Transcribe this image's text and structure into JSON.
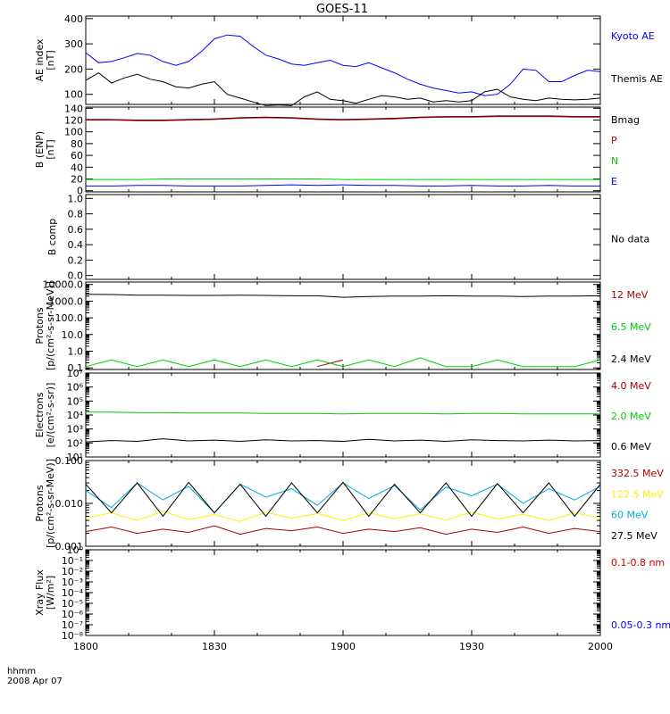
{
  "title": "GOES-11",
  "time_axis": {
    "label_line1": "hhmm",
    "label_line2": "2008 Apr 07",
    "ticks": [
      "1800",
      "1830",
      "1900",
      "1930",
      "2000"
    ]
  },
  "chart_data": [
    {
      "type": "line",
      "ylabel": "AE index\n[nT]",
      "ylim": [
        60,
        410
      ],
      "yscale": "linear",
      "yticks": [
        "100",
        "200",
        "300",
        "400"
      ],
      "x_hours": [
        18.0,
        18.05,
        18.1,
        18.15,
        18.2,
        18.25,
        18.3,
        18.35,
        18.4,
        18.45,
        18.5,
        18.55,
        18.6,
        18.65,
        18.7,
        18.75,
        18.8,
        18.85,
        18.9,
        18.95,
        19.0,
        19.05,
        19.1,
        19.15,
        19.2,
        19.25,
        19.3,
        19.35,
        19.4,
        19.45,
        19.5,
        19.55,
        19.6,
        19.65,
        19.7,
        19.75,
        19.8,
        19.85,
        19.9,
        19.95,
        20.0
      ],
      "series": [
        {
          "name": "Kyoto AE",
          "color": "#0000ff",
          "values": [
            265,
            225,
            230,
            245,
            262,
            255,
            230,
            215,
            230,
            270,
            320,
            335,
            330,
            290,
            255,
            240,
            220,
            215,
            225,
            235,
            215,
            210,
            225,
            205,
            185,
            160,
            140,
            125,
            115,
            105,
            110,
            95,
            100,
            140,
            200,
            195,
            150,
            150,
            175,
            195,
            190
          ]
        },
        {
          "name": "Themis AE",
          "color": "#000000",
          "values": [
            155,
            185,
            145,
            165,
            180,
            160,
            150,
            130,
            125,
            140,
            150,
            100,
            85,
            70,
            55,
            58,
            55,
            90,
            110,
            80,
            75,
            65,
            80,
            95,
            90,
            80,
            85,
            70,
            75,
            70,
            75,
            110,
            120,
            90,
            80,
            75,
            85,
            80,
            78,
            80,
            85
          ]
        }
      ]
    },
    {
      "type": "line",
      "ylabel": "B (ENP)\n[nT]",
      "ylim": [
        -2,
        142
      ],
      "yscale": "linear",
      "yticks": [
        "0",
        "20",
        "40",
        "60",
        "80",
        "100",
        "120",
        "140"
      ],
      "x_hours": [
        18.0,
        18.1,
        18.2,
        18.3,
        18.4,
        18.5,
        18.6,
        18.7,
        18.8,
        18.9,
        19.0,
        19.1,
        19.2,
        19.3,
        19.4,
        19.5,
        19.6,
        19.7,
        19.8,
        19.9,
        20.0
      ],
      "series": [
        {
          "name": "Bmag",
          "color": "#000000",
          "values": [
            121,
            121,
            120,
            120,
            121,
            122,
            124,
            125,
            124,
            122,
            121,
            122,
            123,
            125,
            126,
            126,
            127,
            127,
            127,
            126,
            126
          ]
        },
        {
          "name": "P",
          "color": "#cc0000",
          "values": [
            120,
            120,
            119,
            119,
            120,
            121,
            123,
            124,
            123,
            121,
            120,
            121,
            122,
            124,
            125,
            125,
            126,
            126,
            126,
            125,
            125
          ]
        },
        {
          "name": "N",
          "color": "#00cc00",
          "values": [
            19,
            19,
            19,
            20,
            20,
            20,
            20,
            20,
            20,
            20,
            19,
            19,
            19,
            19,
            19,
            19,
            19,
            19,
            19,
            19,
            19
          ]
        },
        {
          "name": "E",
          "color": "#0000ff",
          "values": [
            8,
            8,
            9,
            9,
            8,
            8,
            8,
            9,
            10,
            9,
            10,
            9,
            9,
            8,
            8,
            9,
            8,
            8,
            9,
            8,
            8
          ]
        }
      ]
    },
    {
      "type": "line",
      "ylabel": "B comp",
      "ylim": [
        -0.05,
        1.05
      ],
      "yscale": "linear",
      "yticks": [
        "0.0",
        "0.2",
        "0.4",
        "0.6",
        "0.8",
        "1.0"
      ],
      "no_data_label": "No data",
      "series": []
    },
    {
      "type": "line",
      "ylabel": "Protons\n[p/(cm²-s-sr-MeV)]",
      "ylim": [
        0.08,
        14000
      ],
      "yscale": "log",
      "yticks": [
        "0.1",
        "1.0",
        "10.0",
        "100.0",
        "1000.0",
        "10000.0"
      ],
      "x_hours": [
        18.0,
        18.1,
        18.2,
        18.3,
        18.4,
        18.5,
        18.6,
        18.7,
        18.8,
        18.9,
        19.0,
        19.1,
        19.2,
        19.3,
        19.4,
        19.5,
        19.6,
        19.7,
        19.8,
        19.9,
        20.0
      ],
      "series": [
        {
          "name": "12 MeV",
          "color": "#aa0000",
          "values": [
            null,
            null,
            null,
            null,
            0.12,
            null,
            0.12,
            null,
            null,
            0.12,
            0.3,
            null,
            null,
            0.12,
            null,
            null,
            null,
            null,
            null,
            null,
            0.12
          ]
        },
        {
          "name": "6.5 MeV",
          "color": "#00cc00",
          "values": [
            0.12,
            0.3,
            0.12,
            0.3,
            0.12,
            0.3,
            0.12,
            0.3,
            0.12,
            0.3,
            0.12,
            0.3,
            0.12,
            0.4,
            0.12,
            0.12,
            0.3,
            0.12,
            0.12,
            0.12,
            0.3
          ]
        },
        {
          "name": "2.4 MeV",
          "color": "#000000",
          "values": [
            2600,
            2500,
            2300,
            2300,
            2200,
            2200,
            2300,
            2200,
            2100,
            2100,
            1700,
            1900,
            2000,
            2000,
            2100,
            2000,
            2000,
            1900,
            2000,
            2000,
            2100
          ]
        }
      ]
    },
    {
      "type": "line",
      "ylabel": "Electrons\n[e/(cm²-s-sr)]",
      "ylim": [
        10,
        10000000
      ],
      "yscale": "log",
      "yticks": [
        "10¹",
        "10²",
        "10³",
        "10⁴",
        "10⁵",
        "10⁶",
        "10⁷"
      ],
      "x_hours": [
        18.0,
        18.1,
        18.2,
        18.3,
        18.4,
        18.5,
        18.6,
        18.7,
        18.8,
        18.9,
        19.0,
        19.1,
        19.2,
        19.3,
        19.4,
        19.5,
        19.6,
        19.7,
        19.8,
        19.9,
        20.0
      ],
      "series": [
        {
          "name": "4.0 MeV",
          "color": "#aa0000",
          "values": [
            null,
            null,
            null,
            null,
            null,
            null,
            null,
            null,
            null,
            null,
            null,
            null,
            null,
            null,
            null,
            null,
            null,
            null,
            null,
            null,
            null
          ]
        },
        {
          "name": "2.0 MeV",
          "color": "#00cc00",
          "values": [
            16000,
            16000,
            15000,
            15000,
            14000,
            14000,
            14000,
            13000,
            13000,
            13000,
            12000,
            13000,
            13000,
            13000,
            12000,
            13000,
            13000,
            12000,
            12000,
            12000,
            12000
          ]
        },
        {
          "name": "0.6 MeV",
          "color": "#000000",
          "values": [
            120,
            150,
            130,
            200,
            140,
            160,
            130,
            170,
            140,
            150,
            130,
            180,
            140,
            160,
            130,
            170,
            150,
            140,
            160,
            140,
            150
          ]
        }
      ]
    },
    {
      "type": "line",
      "ylabel": "Protons\n[p/(cm²-s-sr-MeV)]",
      "ylim": [
        0.001,
        0.1
      ],
      "yscale": "log",
      "yticks": [
        "0.001",
        "0.010",
        "0.100"
      ],
      "x_hours": [
        18.0,
        18.1,
        18.2,
        18.3,
        18.4,
        18.5,
        18.6,
        18.7,
        18.8,
        18.9,
        19.0,
        19.1,
        19.2,
        19.3,
        19.4,
        19.5,
        19.6,
        19.7,
        19.8,
        19.9,
        20.0
      ],
      "series": [
        {
          "name": "332.5 MeV",
          "color": "#aa0000",
          "values": [
            0.0022,
            0.0028,
            0.002,
            0.0025,
            0.0021,
            0.003,
            0.0019,
            0.0026,
            0.0023,
            0.0028,
            0.002,
            0.0025,
            0.0022,
            0.0027,
            0.0019,
            0.0025,
            0.0021,
            0.0028,
            0.002,
            0.0026,
            0.0022
          ]
        },
        {
          "name": "122.5 MeV",
          "color": "#ffee00",
          "values": [
            0.0045,
            0.006,
            0.004,
            0.0065,
            0.0042,
            0.0055,
            0.0038,
            0.0062,
            0.0045,
            0.0058,
            0.004,
            0.006,
            0.0044,
            0.0057,
            0.0041,
            0.0063,
            0.0043,
            0.0056,
            0.004,
            0.006,
            0.0045
          ]
        },
        {
          "name": "60 MeV",
          "color": "#00aadd",
          "values": [
            0.02,
            0.008,
            0.03,
            0.012,
            0.025,
            0.006,
            0.028,
            0.014,
            0.022,
            0.009,
            0.03,
            0.013,
            0.026,
            0.007,
            0.024,
            0.015,
            0.028,
            0.01,
            0.022,
            0.012,
            0.025
          ]
        },
        {
          "name": "27.5 MeV",
          "color": "#000000",
          "values": [
            0.028,
            0.006,
            0.03,
            0.005,
            0.031,
            0.006,
            0.028,
            0.005,
            0.03,
            0.006,
            0.031,
            0.005,
            0.028,
            0.006,
            0.03,
            0.005,
            0.029,
            0.006,
            0.03,
            0.005,
            0.028
          ]
        }
      ]
    },
    {
      "type": "line",
      "ylabel": "Xray Flux\n[W/m²]",
      "ylim": [
        1e-08,
        1
      ],
      "yscale": "log",
      "yticks": [
        "10⁻⁸",
        "10⁻⁷",
        "10⁻⁶",
        "10⁻⁵",
        "10⁻⁴",
        "10⁻³",
        "10⁻²",
        "10⁻¹",
        "10⁰"
      ],
      "series": [
        {
          "name": "0.1-0.8 nm",
          "color": "#cc0000",
          "values": []
        },
        {
          "name": "0.05-0.3 nm",
          "color": "#0000ff",
          "values": []
        }
      ]
    }
  ]
}
